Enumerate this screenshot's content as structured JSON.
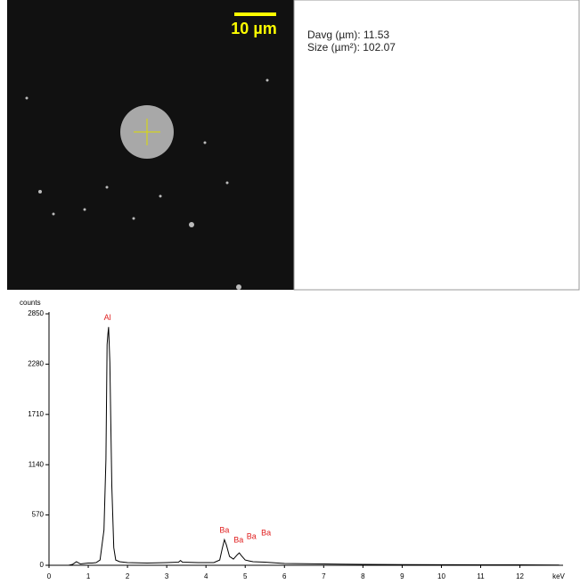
{
  "image_panel": {
    "scale_bar": "10 µm",
    "measurements": [
      "Davg (µm): 11.53",
      "Size (µm²): 102.07"
    ]
  },
  "chart_data": {
    "type": "line",
    "y_label": "counts",
    "x_label": "keV",
    "color": "#000000",
    "x": [
      0.5,
      0.6,
      0.7,
      0.8,
      0.9,
      1.0,
      1.1,
      1.2,
      1.3,
      1.4,
      1.45,
      1.48,
      1.5,
      1.52,
      1.55,
      1.6,
      1.65,
      1.7,
      1.8,
      2.0,
      2.5,
      3.0,
      3.3,
      3.35,
      3.4,
      3.8,
      4.2,
      4.35,
      4.42,
      4.47,
      4.52,
      4.6,
      4.7,
      4.8,
      4.85,
      4.9,
      5.0,
      5.1,
      5.2,
      5.5,
      6.0,
      7.0,
      8.0,
      9.0,
      10,
      11,
      12,
      13
    ],
    "values": [
      0,
      10,
      40,
      15,
      20,
      25,
      25,
      30,
      60,
      400,
      1200,
      2500,
      2620,
      2700,
      2300,
      900,
      200,
      60,
      40,
      30,
      25,
      30,
      35,
      55,
      35,
      30,
      30,
      60,
      200,
      290,
      230,
      100,
      70,
      120,
      140,
      110,
      60,
      50,
      40,
      35,
      20,
      15,
      10,
      8,
      6,
      5,
      5,
      3
    ],
    "xlim": [
      0,
      13.1
    ],
    "xticks": [
      0,
      1,
      2,
      3,
      4,
      5,
      6,
      7,
      8,
      9,
      10,
      11,
      12
    ],
    "ylim": [
      0,
      2850
    ],
    "yticks": [
      0,
      570,
      1140,
      1710,
      2280,
      2850
    ],
    "annotations": [
      {
        "text": "Al",
        "x": 1.49
      },
      {
        "text": "Ba",
        "x": 4.47
      },
      {
        "text": "Ba",
        "x": 4.83
      },
      {
        "text": "Ba",
        "x": 5.16
      },
      {
        "text": "Ba",
        "x": 5.53
      }
    ],
    "annotation_color": "#e02020"
  }
}
